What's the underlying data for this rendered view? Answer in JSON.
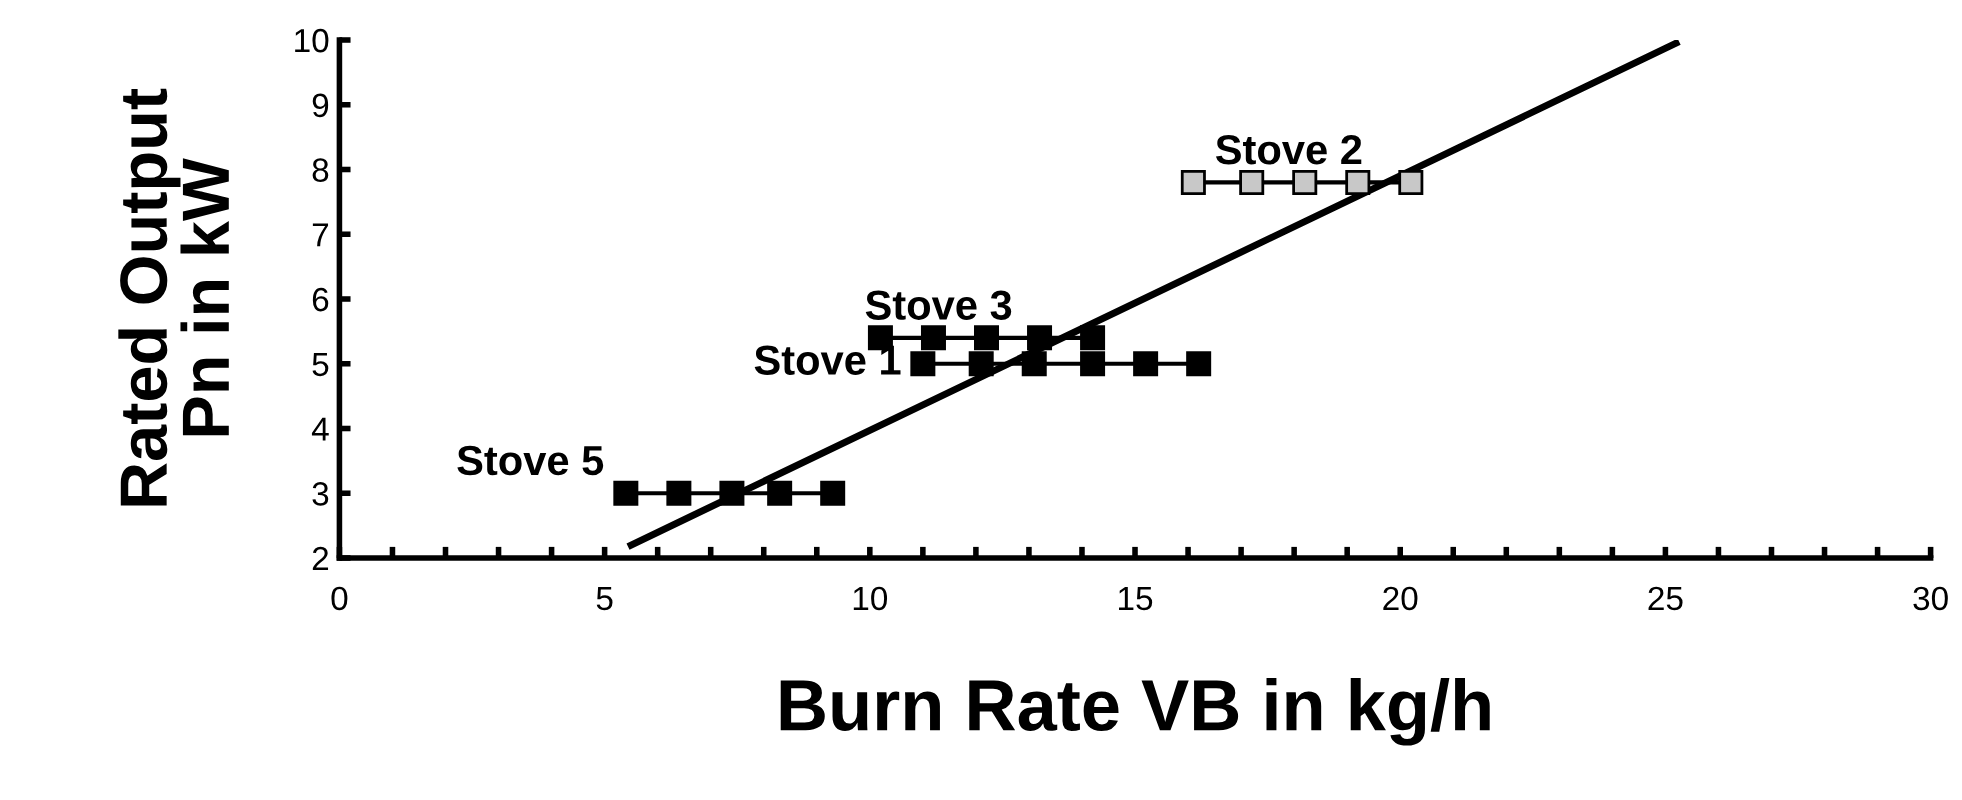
{
  "chart_data": {
    "type": "line",
    "xlabel": "Burn Rate VB in kg/h",
    "ylabel": "Rated Output\nPn in kW",
    "xlim": [
      0,
      30
    ],
    "ylim": [
      2,
      10
    ],
    "xticks": [
      0,
      5,
      10,
      15,
      20,
      25,
      30
    ],
    "yticks": [
      2,
      3,
      4,
      5,
      6,
      7,
      8,
      9,
      10
    ],
    "grid": false,
    "legend": false,
    "marker": "square",
    "series": [
      {
        "name": "Stove 2",
        "color": "#c8c8c8",
        "x": [
          16.1,
          17.2,
          18.2,
          19.2,
          20.2
        ],
        "values": [
          7.8,
          7.8,
          7.8,
          7.8,
          7.8
        ]
      },
      {
        "name": "Stove 3",
        "color": "#000000",
        "x": [
          10.2,
          11.2,
          12.2,
          13.2,
          14.2
        ],
        "values": [
          5.4,
          5.4,
          5.4,
          5.4,
          5.4
        ]
      },
      {
        "name": "Stove 1",
        "color": "#000000",
        "x": [
          11.0,
          12.1,
          13.1,
          14.2,
          15.2,
          16.2
        ],
        "values": [
          5,
          5,
          5,
          5,
          5,
          5
        ]
      },
      {
        "name": "Stove 5",
        "color": "#000000",
        "x": [
          5.4,
          6.4,
          7.4,
          8.3,
          9.3
        ],
        "values": [
          3,
          3,
          3,
          3,
          3
        ]
      },
      {
        "color": "#000000",
        "marker": "none",
        "x": [
          5.5,
          25.2
        ],
        "values": [
          2.2,
          9.95
        ]
      }
    ]
  }
}
